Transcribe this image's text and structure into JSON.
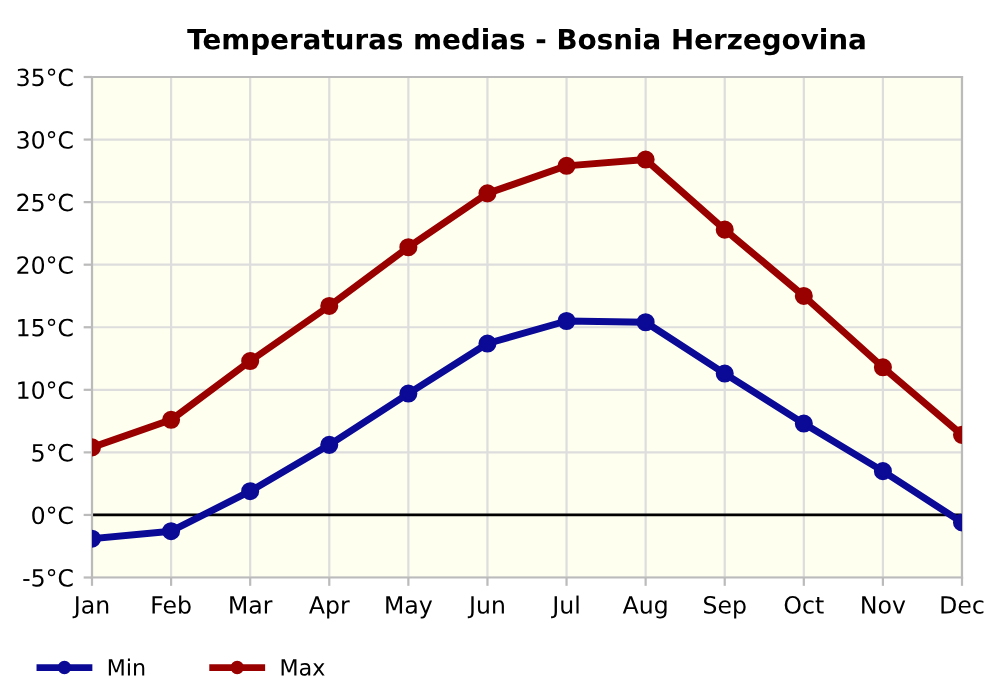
{
  "chart_data": {
    "type": "line",
    "title": "Temperaturas medias - Bosnia Herzegovina",
    "categories": [
      "Jan",
      "Feb",
      "Mar",
      "Apr",
      "May",
      "Jun",
      "Jul",
      "Aug",
      "Sep",
      "Oct",
      "Nov",
      "Dec"
    ],
    "series": [
      {
        "name": "Min",
        "color": "#0a0a96",
        "values": [
          -1.9,
          -1.3,
          1.9,
          5.6,
          9.7,
          13.7,
          15.5,
          15.4,
          11.3,
          7.3,
          3.5,
          -0.6
        ]
      },
      {
        "name": "Max",
        "color": "#990000",
        "values": [
          5.4,
          7.6,
          12.3,
          16.7,
          21.4,
          25.7,
          27.9,
          28.4,
          22.8,
          17.5,
          11.8,
          6.4
        ]
      }
    ],
    "ylim": [
      -5,
      35
    ],
    "yticks": [
      {
        "value": -5,
        "label": "-5°C"
      },
      {
        "value": 0,
        "label": "0°C"
      },
      {
        "value": 5,
        "label": "5°C"
      },
      {
        "value": 10,
        "label": "10°C"
      },
      {
        "value": 15,
        "label": "15°C"
      },
      {
        "value": 20,
        "label": "20°C"
      },
      {
        "value": 25,
        "label": "25°C"
      },
      {
        "value": 30,
        "label": "30°C"
      },
      {
        "value": 35,
        "label": "35°C"
      }
    ],
    "ref_lines": [
      {
        "axis": "y",
        "value": 0,
        "color": "#000000"
      }
    ],
    "grid": true,
    "legend": "bottom left",
    "marker": "circle",
    "line_style": "solid"
  }
}
